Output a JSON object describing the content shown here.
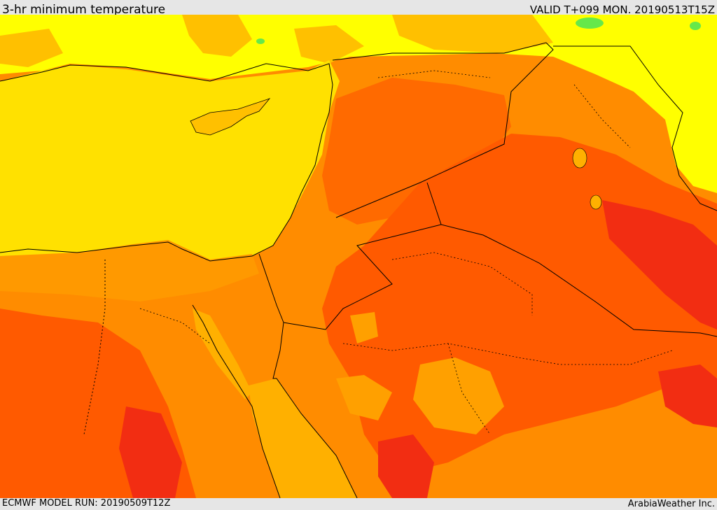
{
  "header": {
    "title": "3-hr minimum temperature",
    "valid": "VALID T+099 MON. 20190513T15Z"
  },
  "footer": {
    "model_run": "ECMWF MODEL RUN: 20190509T12Z",
    "credit": "ArabiaWeather Inc."
  },
  "colors": {
    "sea_yellow": "#ffe100",
    "land_yellow": "#ffff00",
    "amber": "#ffb000",
    "orange": "#ff8c00",
    "orange_red": "#ff5a00",
    "red": "#f22d12",
    "green": "#66e84a",
    "borders": "#000000"
  }
}
